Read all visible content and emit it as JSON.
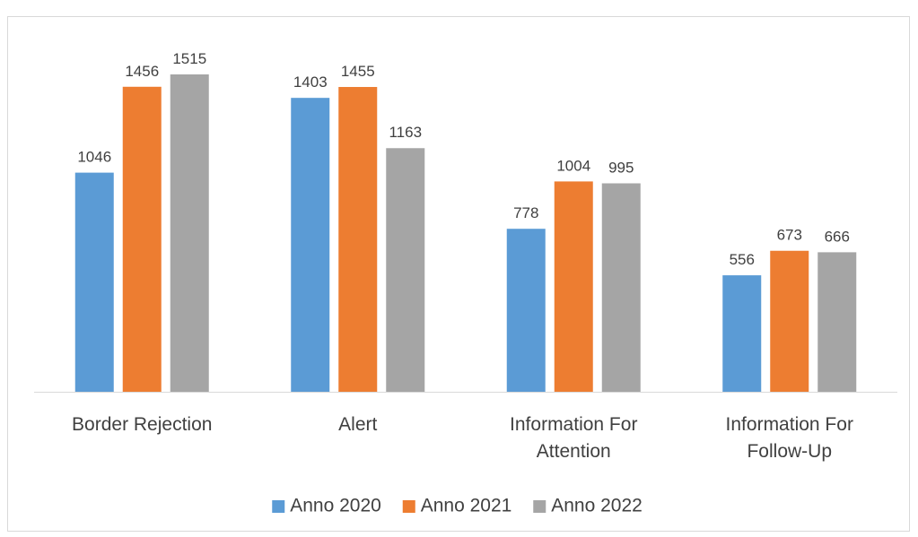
{
  "chart_data": {
    "type": "bar",
    "categories": [
      "Border Rejection",
      "Alert",
      "Information For Attention",
      "Information For Follow-Up"
    ],
    "series": [
      {
        "name": "Anno 2020",
        "color": "#5b9bd5",
        "values": [
          1046,
          1403,
          778,
          556
        ]
      },
      {
        "name": "Anno 2021",
        "color": "#ed7d31",
        "values": [
          1456,
          1455,
          1004,
          673
        ]
      },
      {
        "name": "Anno 2022",
        "color": "#a5a5a5",
        "values": [
          1515,
          1163,
          995,
          666
        ]
      }
    ],
    "legend": "bottom"
  }
}
